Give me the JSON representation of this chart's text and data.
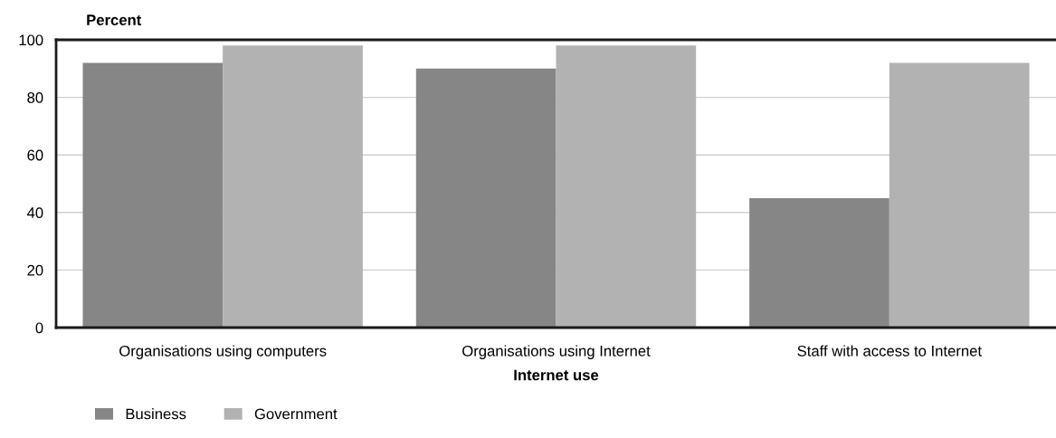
{
  "chart_data": {
    "type": "bar",
    "xlabel": "Internet use",
    "ylabel": "Percent",
    "categories": [
      "Organisations using computers",
      "Organisations using Internet",
      "Staff with access to Internet"
    ],
    "series": [
      {
        "name": "Business",
        "color": "#868686",
        "values": [
          92,
          90,
          45
        ]
      },
      {
        "name": "Government",
        "color": "#b2b2b2",
        "values": [
          98,
          98,
          92
        ]
      }
    ],
    "ylim": [
      0,
      100
    ],
    "yticks": [
      0,
      20,
      40,
      60,
      80,
      100
    ],
    "grid": "y",
    "legend": "bottom left"
  }
}
